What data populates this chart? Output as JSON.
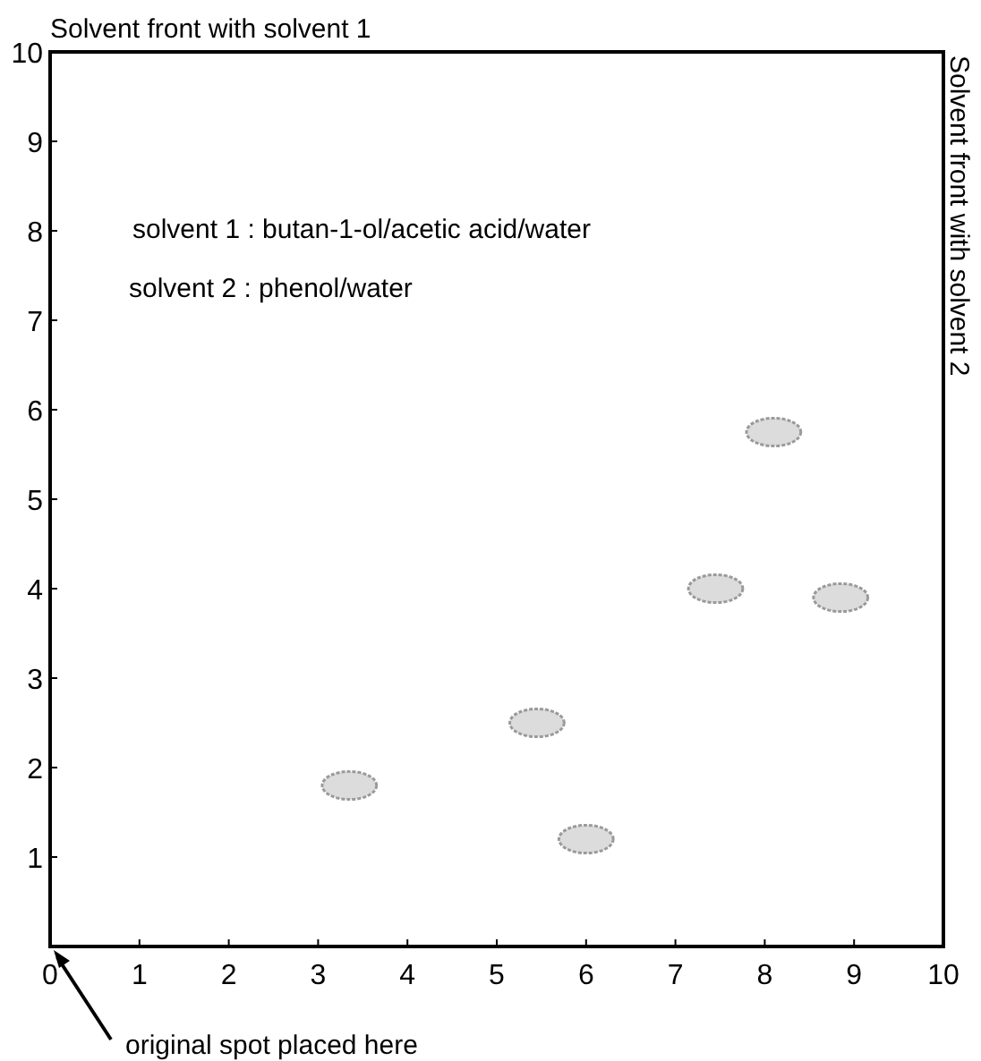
{
  "chart_data": {
    "type": "scatter",
    "title": "Solvent front with solvent 1",
    "y2label": "Solvent front with solvent 2",
    "annotations": [
      "solvent 1 : butan-1-ol/acetic acid/water",
      "solvent 2 : phenol/water",
      "original spot placed here"
    ],
    "series": [
      {
        "color": "#9a9a9a",
        "x": [
          8.1,
          7.45,
          8.85,
          5.45,
          3.35,
          6.0
        ],
        "values": [
          5.75,
          4.0,
          3.9,
          2.5,
          1.8,
          1.2
        ]
      }
    ],
    "xlim": [
      0,
      10
    ],
    "ylim": [
      0,
      10
    ],
    "xticks": [
      0,
      1,
      2,
      3,
      4,
      5,
      6,
      7,
      8,
      9,
      10
    ],
    "yticks": [
      1,
      2,
      3,
      4,
      5,
      6,
      7,
      8,
      9,
      10
    ],
    "grid": false
  }
}
